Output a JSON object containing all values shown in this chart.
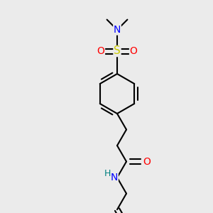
{
  "background_color": "#ebebeb",
  "atom_colors": {
    "N": "#0000FF",
    "O": "#FF0000",
    "S": "#CCCC00",
    "C": "#000000",
    "H": "#008080"
  },
  "bond_color": "#000000",
  "bond_width": 1.5,
  "font_size_atom": 10,
  "font_size_H": 9
}
